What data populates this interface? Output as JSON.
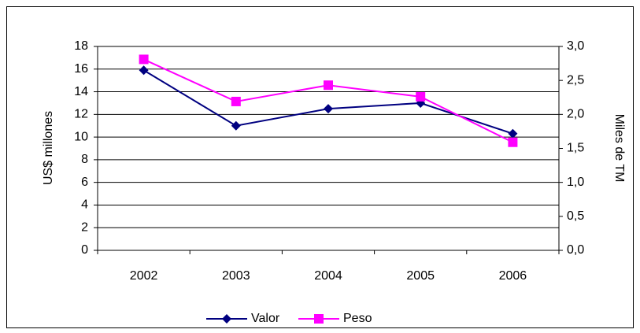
{
  "chart_data": {
    "type": "line",
    "categories": [
      "2002",
      "2003",
      "2004",
      "2005",
      "2006"
    ],
    "series": [
      {
        "name": "Valor",
        "color": "#000080",
        "marker": "diamond",
        "values": [
          15.9,
          11.0,
          12.5,
          13.0,
          10.3
        ]
      },
      {
        "name": "Peso",
        "color": "#ff00ff",
        "marker": "square",
        "axis": "y2",
        "values": [
          2.81,
          2.19,
          2.43,
          2.26,
          1.59
        ]
      }
    ],
    "y_label": "US$ millones",
    "y2_label": "Miles de TM",
    "ylim": [
      0,
      18
    ],
    "yticks": [
      0,
      2,
      4,
      6,
      8,
      10,
      12,
      14,
      16,
      18
    ],
    "y2lim": [
      0,
      3
    ],
    "y2ticks": [
      {
        "value": 0,
        "label": "0,0"
      },
      {
        "value": 0.5,
        "label": "0,5"
      },
      {
        "value": 1,
        "label": "1,0"
      },
      {
        "value": 1.5,
        "label": "1,5"
      },
      {
        "value": 2,
        "label": "2,0"
      },
      {
        "value": 2.5,
        "label": "2,5"
      },
      {
        "value": 3,
        "label": "3,0"
      }
    ],
    "grid": true,
    "legend": "bottom"
  }
}
